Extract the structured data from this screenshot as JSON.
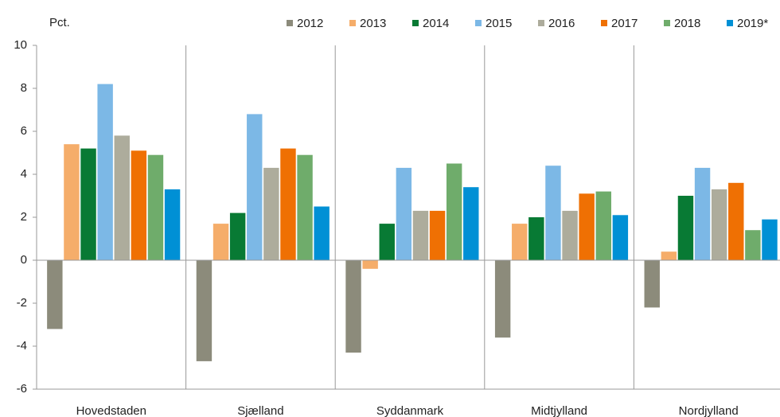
{
  "chart_data": {
    "type": "bar",
    "y_label": "Pct.",
    "categories": [
      "Hovedstaden",
      "Sjælland",
      "Syddanmark",
      "Midtjylland",
      "Nordjylland"
    ],
    "series": [
      {
        "name": "2012",
        "color": "#8c8b7b",
        "values": [
          -3.2,
          -4.7,
          -4.3,
          -3.6,
          -2.2
        ]
      },
      {
        "name": "2013",
        "color": "#f5ad6a",
        "values": [
          5.4,
          1.7,
          -0.4,
          1.7,
          0.4
        ]
      },
      {
        "name": "2014",
        "color": "#087a34",
        "values": [
          5.2,
          2.2,
          1.7,
          2.0,
          3.0
        ]
      },
      {
        "name": "2015",
        "color": "#7cb8e6",
        "values": [
          8.2,
          6.8,
          4.3,
          4.4,
          4.3
        ]
      },
      {
        "name": "2016",
        "color": "#adac9c",
        "values": [
          5.8,
          4.3,
          2.3,
          2.3,
          3.3
        ]
      },
      {
        "name": "2017",
        "color": "#ef7003",
        "values": [
          5.1,
          5.2,
          2.3,
          3.1,
          3.6
        ]
      },
      {
        "name": "2018",
        "color": "#6fac6b",
        "values": [
          4.9,
          4.9,
          4.5,
          3.2,
          1.4
        ]
      },
      {
        "name": "2019*",
        "color": "#0090d5",
        "values": [
          3.3,
          2.5,
          3.4,
          2.1,
          1.9
        ]
      }
    ],
    "ylim": [
      -6,
      10
    ],
    "yticks": [
      -6,
      -4,
      -2,
      0,
      2,
      4,
      6,
      8,
      10
    ],
    "grid": false
  }
}
